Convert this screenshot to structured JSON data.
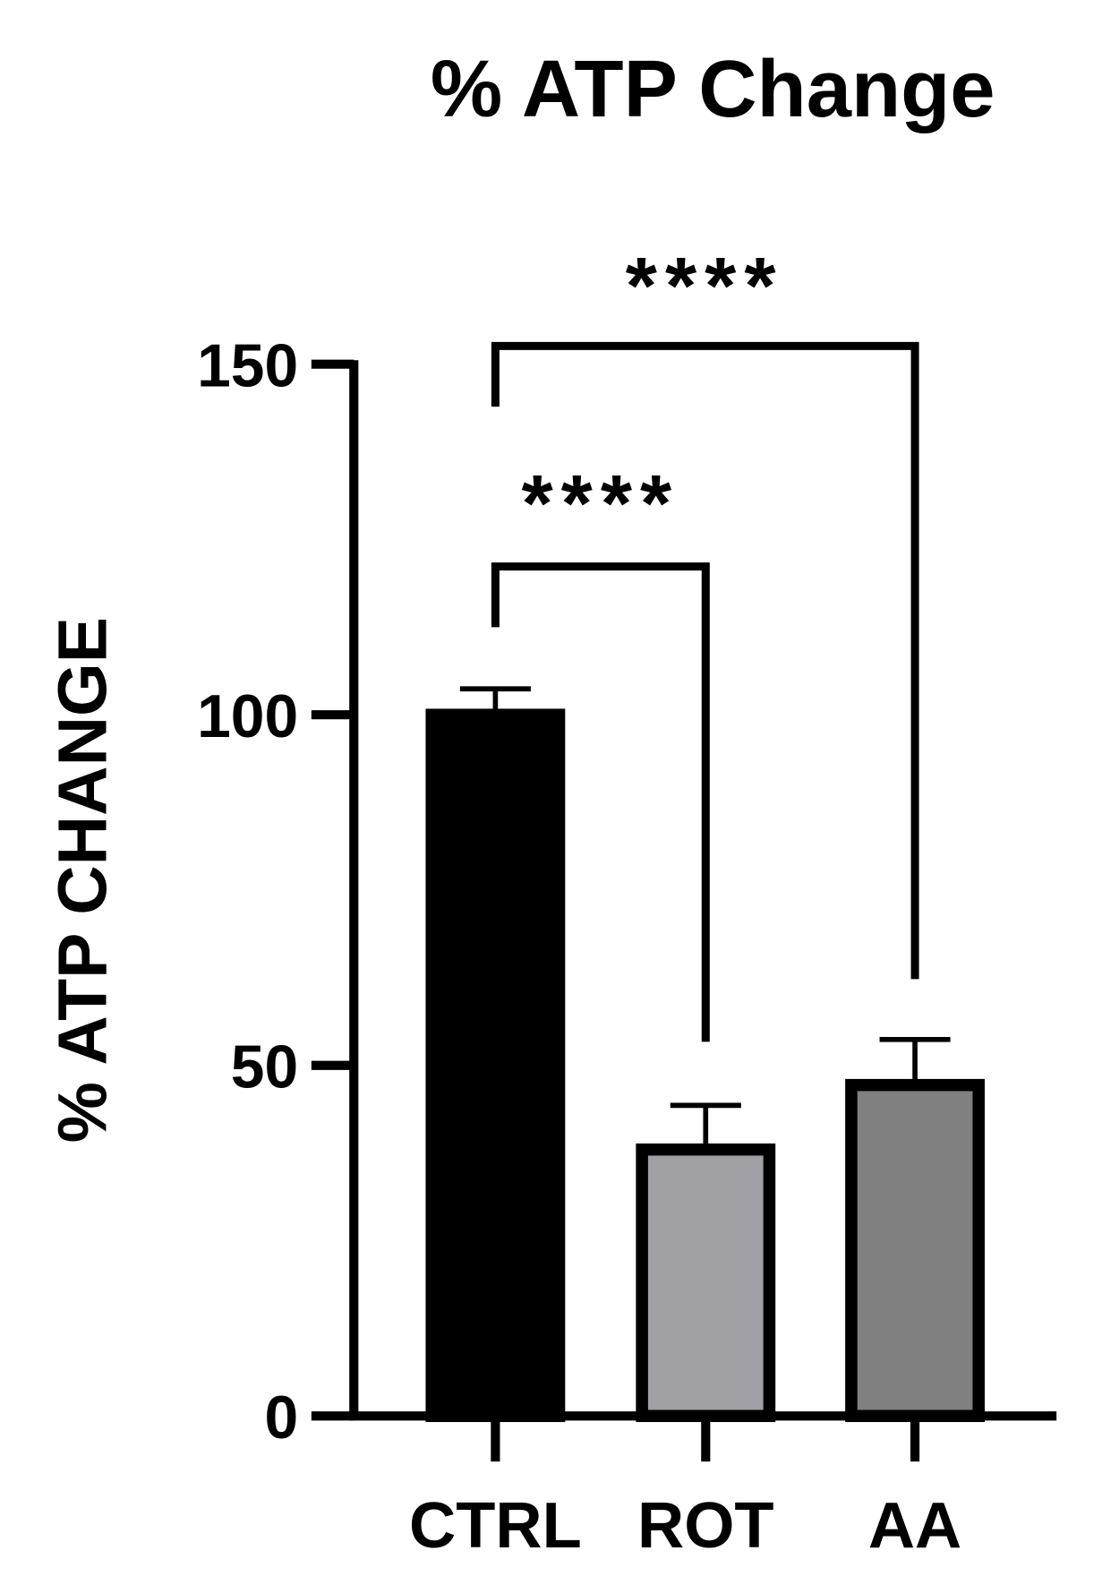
{
  "chart_data": {
    "type": "bar",
    "title": "% ATP Change",
    "y_label": "% ATP CHANGE",
    "categories": [
      "CTRL",
      "ROT",
      "AA"
    ],
    "values": [
      100,
      38,
      47.2
    ],
    "errors": [
      3.7,
      6.3,
      6.5
    ],
    "colors": [
      "#000000",
      "#a0a0a4",
      "#808080"
    ],
    "ylim": [
      0,
      150
    ],
    "yticks": [
      0,
      50,
      100,
      150
    ],
    "annotations": [
      "****",
      "****"
    ]
  }
}
